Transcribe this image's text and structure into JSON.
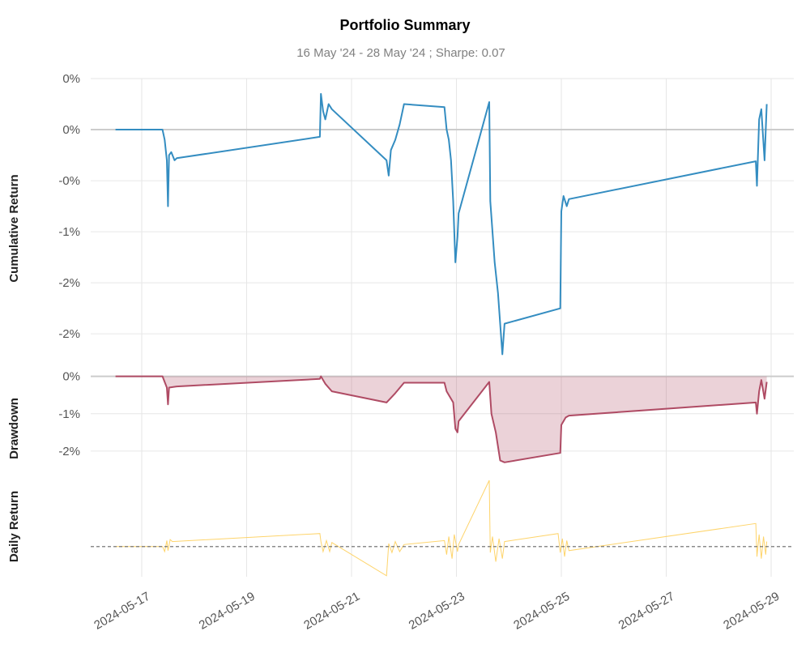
{
  "chart_data": {
    "title": "Portfolio Summary",
    "subtitle": "16 May '24 - 28 May '24 ;  Sharpe: 0.07",
    "x_ticks": [
      "2024-05-17",
      "2024-05-19",
      "2024-05-21",
      "2024-05-23",
      "2024-05-25",
      "2024-05-27",
      "2024-05-29"
    ],
    "xlim": [
      "2024-05-16T09:30",
      "2024-05-29T00:00"
    ],
    "grid": true,
    "colors": {
      "cumulative": "#348dc1",
      "drawdown": "#af4b64",
      "daily": "#fecd51"
    },
    "panels": [
      {
        "type": "line",
        "ylabel": "Cumulative Return",
        "y_ticks": [
          "0%",
          "0%",
          "-0%",
          "-1%",
          "-2%",
          "-2%"
        ],
        "y_tick_values": [
          0.5,
          0.0,
          -0.5,
          -1.0,
          -1.5,
          -2.0
        ],
        "ylim": [
          -2.3,
          0.5
        ],
        "baseline": 0,
        "series": [
          {
            "x": [
              "2024-05-16T12:00",
              "2024-05-17T09:30",
              "2024-05-17T10:30",
              "2024-05-17T11:30",
              "2024-05-17T12:00",
              "2024-05-17T12:30",
              "2024-05-17T13:30",
              "2024-05-17T15:00",
              "2024-05-17T16:00",
              "2024-05-20T09:30",
              "2024-05-20T10:00",
              "2024-05-20T11:00",
              "2024-05-20T12:00",
              "2024-05-20T13:30",
              "2024-05-20T15:00",
              "2024-05-21T16:00",
              "2024-05-21T17:00",
              "2024-05-21T18:00",
              "2024-05-21T20:00",
              "2024-05-21T22:00",
              "2024-05-22T00:00",
              "2024-05-22T18:30",
              "2024-05-22T19:30",
              "2024-05-22T20:30",
              "2024-05-22T21:30",
              "2024-05-22T22:30",
              "2024-05-22T23:30",
              "2024-05-23T00:30",
              "2024-05-23T01:00",
              "2024-05-23T15:00",
              "2024-05-23T15:30",
              "2024-05-23T16:30",
              "2024-05-23T17:30",
              "2024-05-23T19:00",
              "2024-05-23T21:00",
              "2024-05-23T22:00",
              "2024-05-24T23:30",
              "2024-05-25T00:00",
              "2024-05-25T01:00",
              "2024-05-25T02:30",
              "2024-05-25T03:30",
              "2024-05-28T17:00",
              "2024-05-28T17:30",
              "2024-05-28T18:30",
              "2024-05-28T19:30",
              "2024-05-28T21:00",
              "2024-05-28T22:00"
            ],
            "values": [
              0.0,
              0.0,
              -0.1,
              -0.3,
              -0.75,
              -0.25,
              -0.22,
              -0.3,
              -0.28,
              -0.07,
              0.35,
              0.18,
              0.1,
              0.25,
              0.2,
              -0.3,
              -0.45,
              -0.2,
              -0.1,
              0.05,
              0.25,
              0.22,
              0.0,
              -0.1,
              -0.3,
              -0.7,
              -1.3,
              -1.05,
              -0.82,
              0.27,
              -0.7,
              -1.0,
              -1.3,
              -1.6,
              -2.2,
              -1.9,
              -1.75,
              -0.8,
              -0.65,
              -0.75,
              -0.68,
              -0.31,
              -0.55,
              0.1,
              0.2,
              -0.3,
              0.25
            ]
          }
        ]
      },
      {
        "type": "area",
        "ylabel": "Drawdown",
        "y_ticks": [
          "0%",
          "-1%",
          "-2%"
        ],
        "y_tick_values": [
          0,
          -1,
          -2
        ],
        "ylim": [
          -2.5,
          0.1
        ],
        "baseline": 0,
        "series": [
          {
            "x": [
              "2024-05-16T12:00",
              "2024-05-17T09:30",
              "2024-05-17T11:30",
              "2024-05-17T12:00",
              "2024-05-17T12:30",
              "2024-05-17T15:00",
              "2024-05-17T16:00",
              "2024-05-20T09:30",
              "2024-05-20T10:00",
              "2024-05-20T12:00",
              "2024-05-20T15:00",
              "2024-05-21T16:00",
              "2024-05-21T20:00",
              "2024-05-22T00:00",
              "2024-05-22T18:30",
              "2024-05-22T19:30",
              "2024-05-22T22:30",
              "2024-05-22T23:30",
              "2024-05-23T00:30",
              "2024-05-23T01:00",
              "2024-05-23T15:00",
              "2024-05-23T16:00",
              "2024-05-23T18:00",
              "2024-05-23T20:00",
              "2024-05-23T22:00",
              "2024-05-24T23:30",
              "2024-05-25T00:00",
              "2024-05-25T02:00",
              "2024-05-25T03:30",
              "2024-05-28T17:00",
              "2024-05-28T17:30",
              "2024-05-28T18:30",
              "2024-05-28T19:30",
              "2024-05-28T21:00",
              "2024-05-28T22:00"
            ],
            "values": [
              0.0,
              0.0,
              -0.3,
              -0.75,
              -0.3,
              -0.28,
              -0.27,
              -0.07,
              0.0,
              -0.2,
              -0.4,
              -0.7,
              -0.45,
              -0.17,
              -0.17,
              -0.4,
              -0.7,
              -1.4,
              -1.5,
              -1.2,
              -0.15,
              -1.0,
              -1.5,
              -2.25,
              -2.3,
              -2.05,
              -1.3,
              -1.1,
              -1.05,
              -0.7,
              -1.0,
              -0.4,
              -0.1,
              -0.6,
              -0.15
            ]
          }
        ]
      },
      {
        "type": "line",
        "ylabel": "Daily Return",
        "ylim": [
          -0.3,
          0.7
        ],
        "baseline": 0,
        "series": [
          {
            "x": [
              "2024-05-16T12:00",
              "2024-05-17T09:30",
              "2024-05-17T10:30",
              "2024-05-17T11:30",
              "2024-05-17T12:00",
              "2024-05-17T13:00",
              "2024-05-17T14:00",
              "2024-05-20T09:30",
              "2024-05-20T10:00",
              "2024-05-20T11:00",
              "2024-05-20T12:30",
              "2024-05-20T14:00",
              "2024-05-20T15:00",
              "2024-05-21T16:00",
              "2024-05-21T17:00",
              "2024-05-21T18:30",
              "2024-05-21T20:00",
              "2024-05-21T22:00",
              "2024-05-22T00:00",
              "2024-05-22T18:30",
              "2024-05-22T19:30",
              "2024-05-22T20:30",
              "2024-05-22T22:00",
              "2024-05-22T23:00",
              "2024-05-23T00:30",
              "2024-05-23T01:00",
              "2024-05-23T15:00",
              "2024-05-23T15:30",
              "2024-05-23T16:30",
              "2024-05-23T18:00",
              "2024-05-23T19:30",
              "2024-05-23T21:00",
              "2024-05-23T22:00",
              "2024-05-24T22:30",
              "2024-05-24T23:30",
              "2024-05-25T00:30",
              "2024-05-25T01:30",
              "2024-05-25T02:30",
              "2024-05-25T03:30",
              "2024-05-28T17:00",
              "2024-05-28T17:30",
              "2024-05-28T18:30",
              "2024-05-28T19:30",
              "2024-05-28T20:30",
              "2024-05-28T21:30",
              "2024-05-28T22:00"
            ],
            "values": [
              0.0,
              0.0,
              -0.05,
              0.06,
              -0.04,
              0.07,
              0.05,
              0.13,
              0.05,
              -0.05,
              0.06,
              -0.05,
              0.04,
              -0.29,
              0.03,
              -0.06,
              0.05,
              -0.05,
              0.02,
              0.06,
              -0.08,
              0.1,
              -0.12,
              0.12,
              -0.05,
              0.02,
              0.66,
              -0.06,
              0.1,
              -0.15,
              0.08,
              -0.12,
              0.05,
              0.13,
              -0.06,
              0.08,
              -0.1,
              0.06,
              -0.04,
              0.23,
              -0.1,
              0.12,
              -0.12,
              0.1,
              -0.08,
              0.05
            ]
          }
        ]
      }
    ]
  }
}
